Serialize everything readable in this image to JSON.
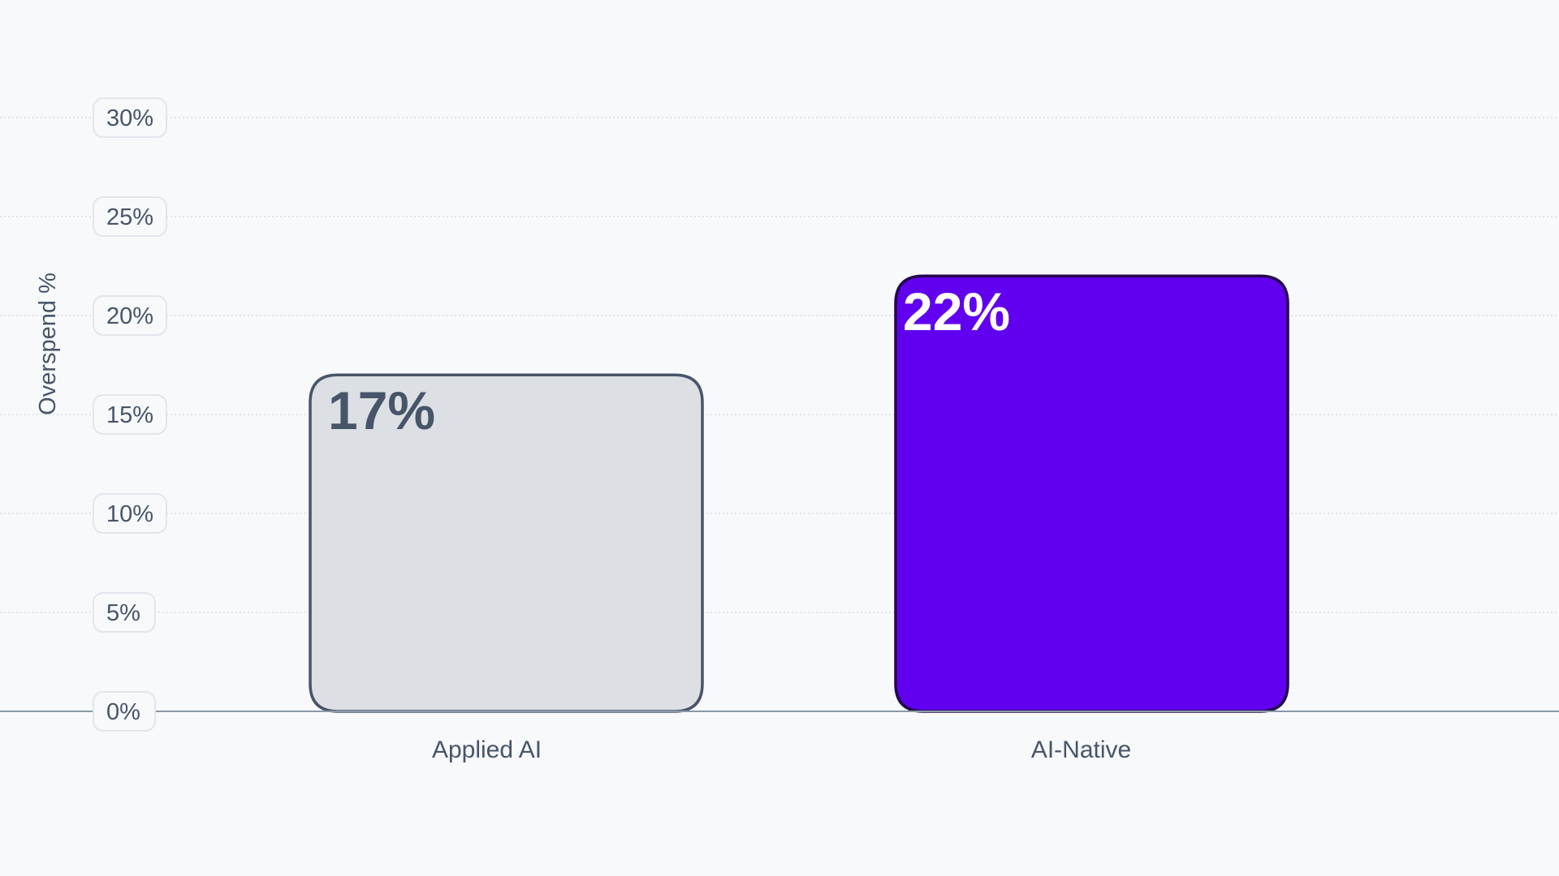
{
  "chart_data": {
    "type": "bar",
    "title": "",
    "xlabel": "",
    "ylabel": "Overspend %",
    "ylim": [
      0,
      30
    ],
    "yticks": [
      0,
      5,
      10,
      15,
      20,
      25,
      30
    ],
    "ytick_labels": [
      "0%",
      "5%",
      "10%",
      "15%",
      "20%",
      "25%",
      "30%"
    ],
    "categories": [
      "Applied AI",
      "AI-Native"
    ],
    "values": [
      17,
      22
    ],
    "value_labels": [
      "17%",
      "22%"
    ],
    "grid": true,
    "legend": "none",
    "bar_colors": [
      {
        "fill": "#dce0e4",
        "stroke": "#475569",
        "label": "#475569"
      },
      {
        "fill": "#6100ee",
        "stroke": "#23094a",
        "label": "#ffffff"
      }
    ],
    "colors": {
      "background": "#f7f9fb",
      "grid": "#d9dee5",
      "axis": "#8a98a8",
      "text": "#475569",
      "tick_badge_border": "#e2e6ec"
    }
  }
}
